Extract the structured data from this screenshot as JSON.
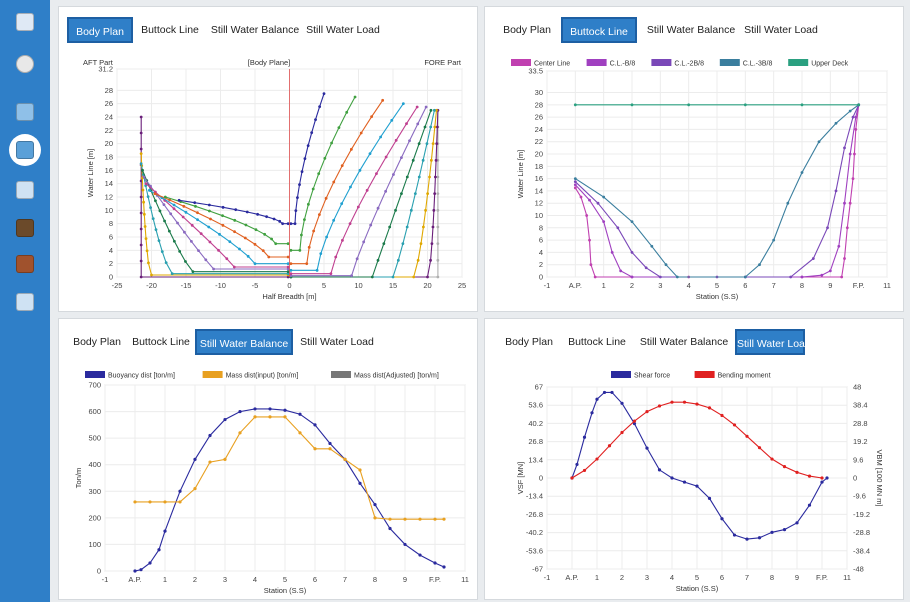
{
  "colors": {
    "sidebar": "#2f7fc8",
    "active_tab": "#2f7fc8"
  },
  "sidebar": {
    "items": [
      {
        "icon": "grid-icon"
      },
      {
        "icon": "user-avatar-icon"
      },
      {
        "icon": "layers-icon"
      },
      {
        "icon": "ship-profile-icon"
      },
      {
        "icon": "info-icon"
      },
      {
        "icon": "door-icon"
      },
      {
        "icon": "cabinet-icon"
      },
      {
        "icon": "wave-icon"
      }
    ]
  },
  "tab_labels": [
    "Body Plan",
    "Buttock Line",
    "Still Water Balance",
    "Still Water Load"
  ],
  "panels": {
    "tl": {
      "active": 0
    },
    "tr": {
      "active": 1
    },
    "bl": {
      "active": 2
    },
    "br": {
      "active": 3
    }
  },
  "chart_data": [
    {
      "type": "line",
      "title": "[Body Plane]",
      "annotations": [
        "AFT Part",
        "FORE Part"
      ],
      "xlabel": "Half Breadth [m]",
      "ylabel": "Water Line [m]",
      "xlim": [
        -25,
        25
      ],
      "ylim": [
        0,
        31.2
      ],
      "x_ticks": [
        "-25",
        "-20",
        "-15",
        "-10",
        "-5",
        "0",
        "5",
        "10",
        "15",
        "20",
        "25"
      ],
      "y_ticks": [
        "0",
        "2",
        "4",
        "6",
        "8",
        "10",
        "12",
        "14",
        "16",
        "18",
        "20",
        "22",
        "24",
        "26",
        "28",
        "31.2"
      ],
      "grid": true,
      "series_note": "approx. 22 station sections, aft half on negative side and fore half on positive side",
      "sections": [
        {
          "side": "aft",
          "bottom_half_width": 21.5,
          "deck_half_width": 21.5,
          "bottom_height": 0,
          "top_height": 24,
          "shape": 0.0
        },
        {
          "side": "aft",
          "bottom_half_width": 20,
          "deck_half_width": 21.5,
          "bottom_height": 0.3,
          "top_height": 18.5,
          "shape": 0.15
        },
        {
          "side": "aft",
          "bottom_half_width": 17,
          "deck_half_width": 21.5,
          "bottom_height": 0.5,
          "top_height": 17,
          "shape": 0.3
        },
        {
          "side": "aft",
          "bottom_half_width": 14,
          "deck_half_width": 21.3,
          "bottom_height": 0.8,
          "top_height": 16,
          "shape": 0.4
        },
        {
          "side": "aft",
          "bottom_half_width": 11,
          "deck_half_width": 21.1,
          "bottom_height": 1.2,
          "top_height": 15,
          "shape": 0.5
        },
        {
          "side": "aft",
          "bottom_half_width": 8,
          "deck_half_width": 20.8,
          "bottom_height": 1.5,
          "top_height": 14,
          "shape": 0.6
        },
        {
          "side": "aft",
          "bottom_half_width": 5,
          "deck_half_width": 20.3,
          "bottom_height": 2,
          "top_height": 13,
          "shape": 0.7
        },
        {
          "side": "aft",
          "bottom_half_width": 3,
          "deck_half_width": 19.5,
          "bottom_height": 3,
          "top_height": 12.5,
          "shape": 0.8
        },
        {
          "side": "aft",
          "bottom_half_width": 2,
          "deck_half_width": 18,
          "bottom_height": 5,
          "top_height": 12,
          "shape": 0.9
        },
        {
          "side": "aft",
          "bottom_half_width": 1,
          "deck_half_width": 16,
          "bottom_height": 8,
          "top_height": 11.5,
          "shape": 1.0
        },
        {
          "side": "fore",
          "bottom_half_width": 21.5,
          "deck_half_width": 21.5,
          "bottom_height": 0,
          "top_height": 25,
          "shape": 0.0
        },
        {
          "side": "fore",
          "bottom_half_width": 20,
          "deck_half_width": 21.5,
          "bottom_height": 0,
          "top_height": 25,
          "shape": 0.15
        },
        {
          "side": "fore",
          "bottom_half_width": 18,
          "deck_half_width": 21.3,
          "bottom_height": 0,
          "top_height": 25,
          "shape": 0.3
        },
        {
          "side": "fore",
          "bottom_half_width": 15,
          "deck_half_width": 21,
          "bottom_height": 0,
          "top_height": 25,
          "shape": 0.45
        },
        {
          "side": "fore",
          "bottom_half_width": 12,
          "deck_half_width": 20.5,
          "bottom_height": 0,
          "top_height": 25,
          "shape": 0.55
        },
        {
          "side": "fore",
          "bottom_half_width": 9,
          "deck_half_width": 19.8,
          "bottom_height": 0.2,
          "top_height": 25.5,
          "shape": 0.65
        },
        {
          "side": "fore",
          "bottom_half_width": 6,
          "deck_half_width": 18.5,
          "bottom_height": 0.5,
          "top_height": 25.5,
          "shape": 0.75
        },
        {
          "side": "fore",
          "bottom_half_width": 4,
          "deck_half_width": 16.5,
          "bottom_height": 1,
          "top_height": 26,
          "shape": 0.85
        },
        {
          "side": "fore",
          "bottom_half_width": 2.5,
          "deck_half_width": 13.5,
          "bottom_height": 2,
          "top_height": 26.5,
          "shape": 0.95
        },
        {
          "side": "fore",
          "bottom_half_width": 1.5,
          "deck_half_width": 9.5,
          "bottom_height": 4,
          "top_height": 27,
          "shape": 1.0
        },
        {
          "side": "fore",
          "bottom_half_width": 0.8,
          "deck_half_width": 5,
          "bottom_height": 8,
          "top_height": 27.5,
          "shape": 1.0
        }
      ]
    },
    {
      "type": "line",
      "xlabel": "Station (S.S)",
      "ylabel": "Water Line [m]",
      "xlim": [
        -1,
        11
      ],
      "ylim": [
        0,
        33.5
      ],
      "x_ticks": [
        "-1",
        "A.P.",
        "1",
        "2",
        "3",
        "4",
        "5",
        "6",
        "7",
        "8",
        "9",
        "F.P.",
        "11"
      ],
      "y_ticks": [
        "0",
        "2",
        "4",
        "6",
        "8",
        "10",
        "12",
        "14",
        "16",
        "18",
        "20",
        "22",
        "24",
        "26",
        "28",
        "30",
        "33.5"
      ],
      "grid": true,
      "legend": "top",
      "series": [
        {
          "name": "Center Line",
          "color": "#c040b0",
          "points": [
            [
              0,
              14.5
            ],
            [
              0.2,
              13
            ],
            [
              0.4,
              10
            ],
            [
              0.5,
              6
            ],
            [
              0.55,
              2
            ],
            [
              0.7,
              0
            ],
            [
              2,
              0
            ],
            [
              4,
              0
            ],
            [
              6,
              0
            ],
            [
              8,
              0
            ],
            [
              9.4,
              0
            ],
            [
              9.5,
              3
            ],
            [
              9.6,
              8
            ],
            [
              9.7,
              12
            ],
            [
              9.8,
              16
            ],
            [
              9.85,
              20
            ],
            [
              9.9,
              24
            ],
            [
              10,
              28
            ]
          ]
        },
        {
          "name": "C.L.-B/8",
          "color": "#a040c0",
          "points": [
            [
              0,
              15
            ],
            [
              0.5,
              12.5
            ],
            [
              1,
              9
            ],
            [
              1.3,
              4
            ],
            [
              1.6,
              1
            ],
            [
              2,
              0
            ],
            [
              5,
              0
            ],
            [
              8,
              0
            ],
            [
              8.7,
              0.3
            ],
            [
              9,
              1
            ],
            [
              9.3,
              5
            ],
            [
              9.5,
              12
            ],
            [
              9.7,
              20
            ],
            [
              9.9,
              26
            ],
            [
              10,
              28
            ]
          ]
        },
        {
          "name": "C.L.-2B/8",
          "color": "#7a48b8",
          "points": [
            [
              0,
              15.5
            ],
            [
              0.8,
              12
            ],
            [
              1.5,
              8
            ],
            [
              2,
              4
            ],
            [
              2.5,
              1.5
            ],
            [
              3,
              0
            ],
            [
              6,
              0
            ],
            [
              7.6,
              0
            ],
            [
              8.4,
              3
            ],
            [
              8.9,
              8
            ],
            [
              9.2,
              14
            ],
            [
              9.5,
              21
            ],
            [
              9.8,
              26
            ],
            [
              10,
              28
            ]
          ]
        },
        {
          "name": "C.L.-3B/8",
          "color": "#3a7e9e",
          "points": [
            [
              0,
              16
            ],
            [
              1,
              13
            ],
            [
              2,
              9
            ],
            [
              2.7,
              5
            ],
            [
              3.2,
              2
            ],
            [
              3.6,
              0
            ],
            [
              6,
              0
            ],
            [
              6.5,
              2
            ],
            [
              7,
              6
            ],
            [
              7.5,
              12
            ],
            [
              8,
              17
            ],
            [
              8.6,
              22
            ],
            [
              9.2,
              25
            ],
            [
              9.7,
              27
            ],
            [
              10,
              28
            ]
          ]
        },
        {
          "name": "Upper Deck",
          "color": "#2aa080",
          "points": [
            [
              0,
              28
            ],
            [
              2,
              28
            ],
            [
              4,
              28
            ],
            [
              6,
              28
            ],
            [
              8,
              28
            ],
            [
              10,
              28
            ]
          ]
        }
      ]
    },
    {
      "type": "line",
      "xlabel": "Station (S.S)",
      "ylabel": "Ton/m",
      "xlim": [
        -1,
        11
      ],
      "ylim": [
        0,
        700
      ],
      "x_ticks": [
        "-1",
        "A.P.",
        "1",
        "2",
        "3",
        "4",
        "5",
        "6",
        "7",
        "8",
        "9",
        "F.P.",
        "11"
      ],
      "y_ticks": [
        "0",
        "100",
        "200",
        "300",
        "400",
        "500",
        "600",
        "700"
      ],
      "grid": true,
      "legend": "top",
      "series": [
        {
          "name": "Buoyancy dist [ton/m]",
          "color": "#2a2a9e",
          "points": [
            [
              0,
              0
            ],
            [
              0.2,
              5
            ],
            [
              0.5,
              30
            ],
            [
              0.8,
              80
            ],
            [
              1,
              150
            ],
            [
              1.5,
              300
            ],
            [
              2,
              420
            ],
            [
              2.5,
              510
            ],
            [
              3,
              570
            ],
            [
              3.5,
              600
            ],
            [
              4,
              610
            ],
            [
              4.5,
              610
            ],
            [
              5,
              605
            ],
            [
              5.5,
              590
            ],
            [
              6,
              550
            ],
            [
              6.5,
              480
            ],
            [
              7,
              420
            ],
            [
              7.5,
              330
            ],
            [
              8,
              250
            ],
            [
              8.5,
              160
            ],
            [
              9,
              100
            ],
            [
              9.5,
              60
            ],
            [
              10,
              30
            ],
            [
              10.3,
              15
            ]
          ]
        },
        {
          "name": "Mass dist(input) [ton/m]",
          "color": "#e8a020",
          "points": [
            [
              0,
              260
            ],
            [
              0.5,
              260
            ],
            [
              1,
              260
            ],
            [
              1.5,
              260
            ],
            [
              2,
              310
            ],
            [
              2.5,
              410
            ],
            [
              3,
              420
            ],
            [
              3.5,
              520
            ],
            [
              4,
              580
            ],
            [
              4.5,
              580
            ],
            [
              5,
              580
            ],
            [
              5.5,
              520
            ],
            [
              6,
              460
            ],
            [
              6.5,
              460
            ],
            [
              7,
              420
            ],
            [
              7.5,
              380
            ],
            [
              8,
              200
            ],
            [
              8.5,
              195
            ],
            [
              9,
              195
            ],
            [
              9.5,
              195
            ],
            [
              10,
              195
            ],
            [
              10.3,
              195
            ]
          ]
        },
        {
          "name": "Mass dist(Adjusted) [ton/m]",
          "color": "#777777",
          "points": []
        }
      ]
    },
    {
      "type": "line",
      "xlabel": "Station (S.S)",
      "ylabel": "VSF [MN]",
      "y2label": "VBM [100 MN m]",
      "xlim": [
        -1,
        11
      ],
      "ylim": [
        -67,
        67
      ],
      "y2lim": [
        -48,
        48
      ],
      "x_ticks": [
        "-1",
        "A.P.",
        "1",
        "2",
        "3",
        "4",
        "5",
        "6",
        "7",
        "8",
        "9",
        "F.P.",
        "11"
      ],
      "y_ticks": [
        "-67",
        "-53.6",
        "-40.2",
        "-26.8",
        "-13.4",
        "0",
        "13.4",
        "26.8",
        "40.2",
        "53.6",
        "67"
      ],
      "y2_ticks": [
        "-48",
        "-38.4",
        "-28.8",
        "-19.2",
        "-9.6",
        "0",
        "9.6",
        "19.2",
        "28.8",
        "38.4",
        "48"
      ],
      "grid": true,
      "legend": "top",
      "series": [
        {
          "name": "Shear force",
          "color": "#2a2a9e",
          "axis": "y",
          "points": [
            [
              0,
              0
            ],
            [
              0.2,
              10
            ],
            [
              0.5,
              30
            ],
            [
              0.8,
              48
            ],
            [
              1,
              58
            ],
            [
              1.3,
              63
            ],
            [
              1.6,
              63
            ],
            [
              2,
              55
            ],
            [
              2.5,
              40
            ],
            [
              3,
              22
            ],
            [
              3.5,
              6
            ],
            [
              4,
              0
            ],
            [
              4.5,
              -3
            ],
            [
              5,
              -6
            ],
            [
              5.5,
              -15
            ],
            [
              6,
              -30
            ],
            [
              6.5,
              -42
            ],
            [
              7,
              -45
            ],
            [
              7.5,
              -44
            ],
            [
              8,
              -40
            ],
            [
              8.5,
              -38
            ],
            [
              9,
              -33
            ],
            [
              9.5,
              -20
            ],
            [
              10,
              -3
            ],
            [
              10.2,
              0
            ]
          ]
        },
        {
          "name": "Bending moment",
          "color": "#e02020",
          "axis": "y2",
          "points": [
            [
              0,
              0
            ],
            [
              0.5,
              4
            ],
            [
              1,
              10
            ],
            [
              1.5,
              17
            ],
            [
              2,
              24
            ],
            [
              2.5,
              30
            ],
            [
              3,
              35
            ],
            [
              3.5,
              38
            ],
            [
              4,
              40
            ],
            [
              4.5,
              40
            ],
            [
              5,
              39
            ],
            [
              5.5,
              37
            ],
            [
              6,
              33
            ],
            [
              6.5,
              28
            ],
            [
              7,
              22
            ],
            [
              7.5,
              16
            ],
            [
              8,
              10
            ],
            [
              8.5,
              6
            ],
            [
              9,
              3
            ],
            [
              9.5,
              1
            ],
            [
              10,
              0
            ]
          ]
        }
      ]
    }
  ]
}
